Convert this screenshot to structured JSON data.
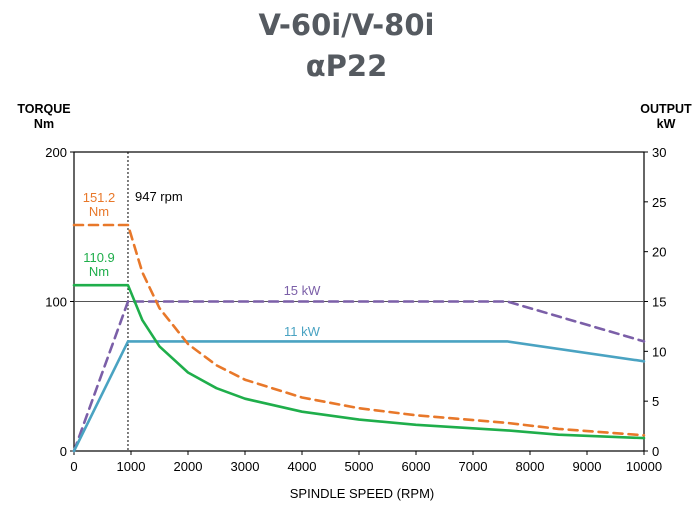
{
  "header": {
    "title": "V-60i/V-80i",
    "subtitle": "αP22"
  },
  "chart_data": {
    "type": "line",
    "title": "V-60i/V-80i",
    "subtitle": "αP22",
    "xlabel": "SPINDLE SPEED (RPM)",
    "ylabel_left": [
      "TORQUE",
      "Nm"
    ],
    "ylabel_right": [
      "OUTPUT",
      "kW"
    ],
    "xlim": [
      0,
      10000
    ],
    "ylim_left": [
      0,
      200
    ],
    "ylim_right": [
      0,
      30
    ],
    "x_ticks": [
      "0",
      "1000",
      "2000",
      "3000",
      "4000",
      "5000",
      "6000",
      "7000",
      "8000",
      "9000",
      "10000"
    ],
    "y_left_ticks": [
      "0",
      "100",
      "200"
    ],
    "y_right_ticks": [
      "0",
      "5",
      "10",
      "15",
      "20",
      "25",
      "30"
    ],
    "reference_line": {
      "torque": 100
    },
    "base_speed": {
      "rpm": 947,
      "label": "947 rpm"
    },
    "series": [
      {
        "name": "15 kW",
        "kind": "power",
        "axis": "right",
        "color": "#7b5fa8",
        "dashed": true,
        "x": [
          0,
          947,
          7600,
          10000
        ],
        "y": [
          0,
          15,
          15,
          11
        ]
      },
      {
        "name": "11 kW",
        "kind": "power",
        "axis": "right",
        "color": "#4aa3c2",
        "dashed": false,
        "x": [
          0,
          947,
          7600,
          10000
        ],
        "y": [
          0,
          11,
          11,
          9
        ]
      },
      {
        "name": "151.2 Nm",
        "kind": "torque",
        "axis": "left",
        "color": "#e8782a",
        "dashed": true,
        "x": [
          0,
          947,
          1200,
          1500,
          2000,
          2500,
          3000,
          4000,
          5000,
          6000,
          7600,
          8500,
          10000
        ],
        "y": [
          151.2,
          151.2,
          119.4,
          95.5,
          71.6,
          57.3,
          47.7,
          35.8,
          28.6,
          23.9,
          18.8,
          14.8,
          10.5
        ]
      },
      {
        "name": "110.9 Nm",
        "kind": "torque",
        "axis": "left",
        "color": "#1fae4b",
        "dashed": false,
        "x": [
          0,
          947,
          1200,
          1500,
          2000,
          2500,
          3000,
          4000,
          5000,
          6000,
          7600,
          8500,
          10000
        ],
        "y": [
          110.9,
          110.9,
          87.5,
          70.0,
          52.5,
          42.0,
          35.0,
          26.3,
          21.0,
          17.5,
          13.8,
          10.9,
          8.6
        ]
      }
    ],
    "labels": {
      "torque_high_value": "151.2",
      "torque_high_unit": "Nm",
      "torque_low_value": "110.9",
      "torque_low_unit": "Nm",
      "power_high": "15 kW",
      "power_low": "11 kW"
    },
    "grid": false
  }
}
